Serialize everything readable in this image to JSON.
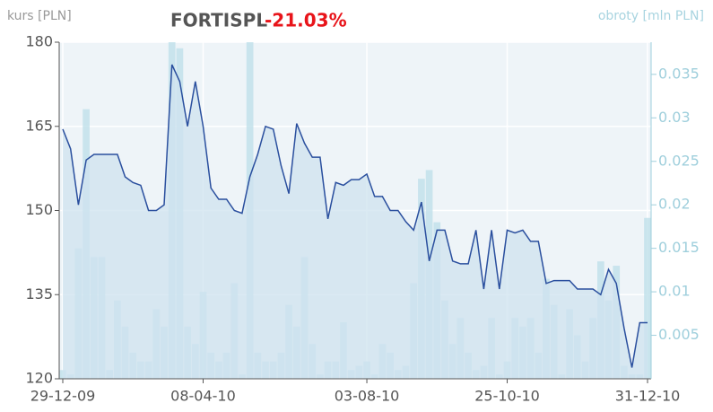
{
  "chart_data": {
    "type": "line",
    "title": "FORTISPL",
    "change": "-21.03%",
    "y_label": "kurs [PLN]",
    "y2_label": "obroty [mln PLN]",
    "categories": [
      "29-12-09",
      null,
      null,
      null,
      null,
      null,
      null,
      null,
      null,
      null,
      null,
      null,
      null,
      null,
      null,
      null,
      null,
      null,
      "08-04-10",
      null,
      null,
      null,
      null,
      null,
      null,
      null,
      null,
      null,
      null,
      null,
      null,
      null,
      null,
      null,
      null,
      null,
      null,
      null,
      null,
      "03-08-10",
      null,
      null,
      null,
      null,
      null,
      null,
      null,
      null,
      null,
      null,
      null,
      null,
      null,
      null,
      null,
      null,
      null,
      "25-10-10",
      null,
      null,
      null,
      null,
      null,
      null,
      null,
      null,
      null,
      null,
      null,
      null,
      null,
      null,
      null,
      null,
      null,
      "31-12-10"
    ],
    "series": [
      {
        "name": "kurs",
        "type": "line",
        "color": "#2a4f9e",
        "area_color": "#cfe3ef",
        "values": [
          164.5,
          161,
          151,
          159,
          160,
          160,
          160,
          160,
          156,
          155,
          154.5,
          150,
          150,
          151,
          176,
          173,
          165,
          173,
          165,
          154,
          152,
          152,
          150,
          149.5,
          156,
          160,
          165,
          164.5,
          158,
          153,
          165.5,
          162,
          159.5,
          159.5,
          148.5,
          155,
          154.5,
          155.5,
          155.5,
          156.5,
          152.5,
          152.5,
          150,
          150,
          148,
          146.5,
          151.5,
          141,
          146.5,
          146.5,
          141,
          140.5,
          140.5,
          146.5,
          136,
          146.5,
          136,
          146.5,
          146,
          146.5,
          144.5,
          144.5,
          137,
          137.5,
          137.5,
          137.5,
          136,
          136,
          136,
          135,
          139.5,
          137,
          129,
          122,
          130,
          130
        ]
      },
      {
        "name": "obroty",
        "type": "bar",
        "axis": "y2",
        "color": "#bfe0ea",
        "values": [
          0.001,
          0.0005,
          0.015,
          0.031,
          0.014,
          0.014,
          0.001,
          0.009,
          0.006,
          0.003,
          0.002,
          0.002,
          0.008,
          0.006,
          0.0387,
          0.038,
          0.006,
          0.004,
          0.01,
          0.003,
          0.002,
          0.003,
          0.011,
          0.0005,
          0.0387,
          0.003,
          0.002,
          0.002,
          0.003,
          0.0085,
          0.006,
          0.014,
          0.004,
          0.0005,
          0.002,
          0.002,
          0.0065,
          0.001,
          0.0015,
          0.002,
          0.0005,
          0.004,
          0.003,
          0.001,
          0.0015,
          0.011,
          0.023,
          0.024,
          0.018,
          0.009,
          0.004,
          0.007,
          0.003,
          0.001,
          0.0015,
          0.007,
          0.0005,
          0.002,
          0.007,
          0.006,
          0.007,
          0.003,
          0.0115,
          0.0085,
          0.0005,
          0.008,
          0.005,
          0.002,
          0.007,
          0.0135,
          0.009,
          0.013,
          0.0015,
          0.0005,
          0.0005,
          0.0185
        ]
      }
    ],
    "ylim": [
      120,
      180
    ],
    "yticks": [
      120,
      135,
      150,
      165,
      180
    ],
    "y2lim": [
      0,
      0.0387
    ],
    "y2ticks": [
      0.005,
      0.01,
      0.015,
      0.02,
      0.025,
      0.03,
      0.035
    ],
    "grid": true
  }
}
